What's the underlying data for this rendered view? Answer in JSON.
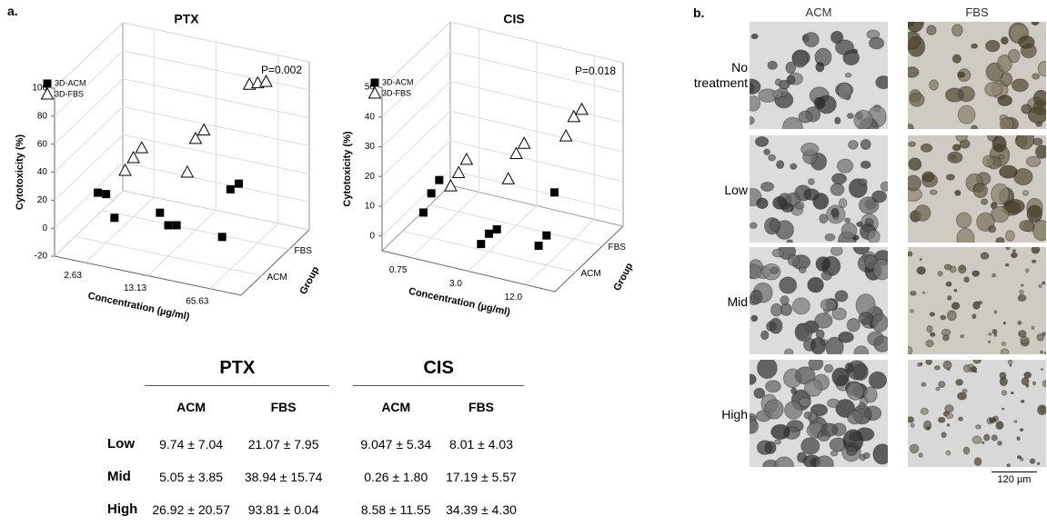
{
  "panel_a": {
    "label": "a."
  },
  "chart_data": [
    {
      "type": "scatter3d",
      "title": "PTX",
      "annotation": "P=0.002",
      "y_label": "Cytotoxicity (%)",
      "x_label": "Concentration (µg/ml)",
      "z_label": "Group",
      "categories": [
        "2.63",
        "13.13",
        "65.63"
      ],
      "groups": [
        "ACM",
        "FBS"
      ],
      "x": [
        "2.63",
        "2.63",
        "2.63",
        "13.13",
        "13.13",
        "13.13",
        "65.63",
        "65.63",
        "65.63"
      ],
      "ylim": [
        -20,
        100
      ],
      "yticks": [
        -20,
        0,
        20,
        40,
        60,
        80,
        100
      ],
      "grid": true,
      "series": [
        {
          "name": "3D-ACM",
          "group": "ACM",
          "color": "#000000",
          "marker": "square",
          "values": [
            17,
            15,
            -3,
            12,
            2,
            1,
            4,
            37,
            40
          ]
        },
        {
          "name": "3D-FBS",
          "group": "FBS",
          "color": "#ffffff",
          "marker": "triangle",
          "values": [
            14,
            22,
            28,
            22,
            45,
            50,
            94,
            94,
            94
          ]
        }
      ]
    },
    {
      "type": "scatter3d",
      "title": "CIS",
      "annotation": "P=0.018",
      "y_label": "Cytotoxicity (%)",
      "x_label": "Concentration (µg/ml)",
      "z_label": "Group",
      "categories": [
        "0.75",
        "3.0",
        "12.0"
      ],
      "groups": [
        "ACM",
        "FBS"
      ],
      "x": [
        "0.75",
        "0.75",
        "0.75",
        "3.0",
        "3.0",
        "3.0",
        "12.0",
        "12.0",
        "12.0"
      ],
      "ylim": [
        -5,
        50
      ],
      "yticks": [
        0,
        10,
        20,
        30,
        40,
        50
      ],
      "grid": true,
      "series": [
        {
          "name": "3D-ACM",
          "group": "ACM",
          "color": "#000000",
          "marker": "square",
          "values": [
            4,
            10,
            14,
            -2,
            1,
            2,
            2,
            5,
            19
          ]
        },
        {
          "name": "3D-FBS",
          "group": "FBS",
          "color": "#ffffff",
          "marker": "triangle",
          "values": [
            4,
            8,
            12,
            11,
            19,
            22,
            30,
            36,
            38
          ]
        }
      ]
    }
  ],
  "table": {
    "groups": [
      "PTX",
      "CIS"
    ],
    "columns": [
      "ACM",
      "FBS",
      "ACM",
      "FBS"
    ],
    "rows": [
      {
        "label": "Low",
        "cells": [
          "9.74 ± 7.04",
          "21.07 ± 7.95",
          "9.047 ± 5.34",
          "8.01 ± 4.03"
        ]
      },
      {
        "label": "Mid",
        "cells": [
          "5.05 ± 3.85",
          "38.94 ± 15.74",
          "0.26 ± 1.80",
          "17.19 ± 5.57"
        ]
      },
      {
        "label": "High",
        "cells": [
          "26.92 ± 20.57",
          "93.81 ± 0.04",
          "8.58 ± 11.55",
          "34.39 ± 4.30"
        ]
      }
    ]
  },
  "panel_b": {
    "label": "b.",
    "columns": [
      "ACM",
      "FBS"
    ],
    "rows": [
      "No treatment",
      "Low",
      "Mid",
      "High"
    ],
    "scale_bar": "120 µm"
  }
}
